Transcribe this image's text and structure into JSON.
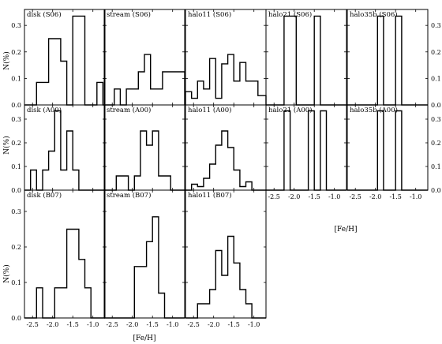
{
  "chart_data": {
    "type": "histogram-grid",
    "ylabel": "N(%)",
    "xlabel": "[Fe/H]",
    "xlim": [
      -2.7,
      -0.7
    ],
    "ylim": [
      0,
      0.36
    ],
    "xticks": [
      -2.5,
      -2.0,
      -1.5,
      -1.0
    ],
    "xtick_labels": [
      "-2.5",
      "-2.0",
      "-1.5",
      "-1.0"
    ],
    "yticks": [
      0.0,
      0.1,
      0.2,
      0.3
    ],
    "ytick_labels": [
      "0.0",
      "0.1",
      "0.2",
      "0.3"
    ],
    "panels": [
      {
        "row": 0,
        "col": 0,
        "title": "disk (S06)",
        "x": [
          -2.7,
          -2.55,
          -2.4,
          -2.25,
          -2.1,
          -1.95,
          -1.8,
          -1.65,
          -1.5,
          -1.35,
          -1.2,
          -1.05,
          -0.9,
          -0.75,
          -0.7
        ],
        "y": [
          0,
          0,
          0.085,
          0.085,
          0.25,
          0.25,
          0.165,
          0,
          0.335,
          0.335,
          0,
          0,
          0.085,
          0
        ]
      },
      {
        "row": 0,
        "col": 1,
        "title": "stream (S06)",
        "x": [
          -2.7,
          -2.6,
          -2.45,
          -2.3,
          -2.15,
          -2.0,
          -1.85,
          -1.7,
          -1.55,
          -1.4,
          -1.25,
          -1.1,
          -0.95,
          -0.8,
          -0.7
        ],
        "y": [
          0,
          0,
          0.06,
          0,
          0.06,
          0.06,
          0.125,
          0.19,
          0.06,
          0.06,
          0.125,
          0.125,
          0.125,
          0.125
        ]
      },
      {
        "row": 0,
        "col": 2,
        "title": "halo11 (S06)",
        "x": [
          -2.7,
          -2.55,
          -2.4,
          -2.25,
          -2.1,
          -1.95,
          -1.8,
          -1.65,
          -1.5,
          -1.35,
          -1.2,
          -1.05,
          -0.9,
          -0.75,
          -0.7
        ],
        "y": [
          0.05,
          0.025,
          0.09,
          0.06,
          0.175,
          0.025,
          0.155,
          0.19,
          0.09,
          0.16,
          0.09,
          0.09,
          0.035,
          0.035
        ]
      },
      {
        "row": 0,
        "col": 3,
        "title": "halo21 (S06)",
        "x": [
          -2.7,
          -2.55,
          -2.4,
          -2.25,
          -2.1,
          -1.95,
          -1.8,
          -1.65,
          -1.5,
          -1.35,
          -1.2,
          -1.05,
          -0.9,
          -0.75,
          -0.7
        ],
        "y": [
          0,
          0,
          0,
          0.335,
          0.335,
          0,
          0,
          0,
          0.335,
          0,
          0,
          0,
          0,
          0
        ]
      },
      {
        "row": 0,
        "col": 4,
        "title": "halo35b (S06)",
        "x": [
          -2.7,
          -2.55,
          -2.4,
          -2.25,
          -2.1,
          -1.95,
          -1.8,
          -1.65,
          -1.5,
          -1.35,
          -1.2,
          -1.05,
          -0.9,
          -0.75,
          -0.7
        ],
        "y": [
          0,
          0,
          0,
          0,
          0,
          0.335,
          0,
          0,
          0.335,
          0,
          0,
          0,
          0,
          0
        ]
      },
      {
        "row": 1,
        "col": 0,
        "title": "disk (A00)",
        "x": [
          -2.7,
          -2.55,
          -2.4,
          -2.25,
          -2.1,
          -1.95,
          -1.8,
          -1.65,
          -1.5,
          -1.35,
          -1.2,
          -1.05,
          -0.9,
          -0.75,
          -0.7
        ],
        "y": [
          0,
          0.085,
          0,
          0.085,
          0.165,
          0.335,
          0.085,
          0.25,
          0.085,
          0,
          0,
          0,
          0,
          0
        ]
      },
      {
        "row": 1,
        "col": 1,
        "title": "stream (A00)",
        "x": [
          -2.7,
          -2.55,
          -2.4,
          -2.25,
          -2.1,
          -1.95,
          -1.8,
          -1.65,
          -1.5,
          -1.35,
          -1.2,
          -1.05,
          -0.9,
          -0.75,
          -0.7
        ],
        "y": [
          0,
          0,
          0.06,
          0.06,
          0,
          0.06,
          0.25,
          0.19,
          0.25,
          0.06,
          0.06,
          0,
          0,
          0
        ]
      },
      {
        "row": 1,
        "col": 2,
        "title": "halo11 (A00)",
        "x": [
          -2.7,
          -2.55,
          -2.4,
          -2.25,
          -2.1,
          -1.95,
          -1.8,
          -1.65,
          -1.5,
          -1.35,
          -1.2,
          -1.05,
          -0.9,
          -0.75,
          -0.7
        ],
        "y": [
          0,
          0.025,
          0.015,
          0.05,
          0.11,
          0.19,
          0.25,
          0.18,
          0.085,
          0.015,
          0.035,
          0,
          0,
          0
        ]
      },
      {
        "row": 1,
        "col": 3,
        "title": "halo21 (A00)",
        "x": [
          -2.7,
          -2.55,
          -2.4,
          -2.25,
          -2.1,
          -1.95,
          -1.8,
          -1.65,
          -1.5,
          -1.35,
          -1.2,
          -1.05,
          -0.9,
          -0.75,
          -0.7
        ],
        "y": [
          0,
          0,
          0,
          0.335,
          0,
          0,
          0,
          0.335,
          0,
          0.335,
          0,
          0,
          0,
          0
        ]
      },
      {
        "row": 1,
        "col": 4,
        "title": "halo35b (A00)",
        "x": [
          -2.7,
          -2.55,
          -2.4,
          -2.25,
          -2.1,
          -1.95,
          -1.8,
          -1.65,
          -1.5,
          -1.35,
          -1.2,
          -1.05,
          -0.9,
          -0.75,
          -0.7
        ],
        "y": [
          0,
          0,
          0,
          0,
          0,
          0.335,
          0,
          0,
          0.335,
          0,
          0,
          0,
          0,
          0
        ]
      },
      {
        "row": 2,
        "col": 0,
        "title": "disk (B07)",
        "x": [
          -2.7,
          -2.55,
          -2.4,
          -2.25,
          -2.1,
          -1.95,
          -1.8,
          -1.65,
          -1.5,
          -1.35,
          -1.2,
          -1.05,
          -0.9,
          -0.75,
          -0.7
        ],
        "y": [
          0,
          0,
          0.085,
          0,
          0,
          0.085,
          0.085,
          0.25,
          0.25,
          0.165,
          0.085,
          0,
          0,
          0
        ]
      },
      {
        "row": 2,
        "col": 1,
        "title": "stream (B07)",
        "x": [
          -2.7,
          -2.55,
          -2.4,
          -2.25,
          -2.1,
          -1.95,
          -1.8,
          -1.65,
          -1.5,
          -1.35,
          -1.2,
          -1.05,
          -0.9,
          -0.75,
          -0.7
        ],
        "y": [
          0,
          0,
          0,
          0,
          0,
          0.145,
          0.145,
          0.215,
          0.285,
          0.07,
          0,
          0,
          0,
          0
        ]
      },
      {
        "row": 2,
        "col": 2,
        "title": "halo11 (B07)",
        "x": [
          -2.7,
          -2.55,
          -2.4,
          -2.25,
          -2.1,
          -1.95,
          -1.8,
          -1.65,
          -1.5,
          -1.35,
          -1.2,
          -1.05,
          -0.9,
          -0.75,
          -0.7
        ],
        "y": [
          0,
          0,
          0.04,
          0.04,
          0.08,
          0.19,
          0.12,
          0.23,
          0.155,
          0.08,
          0.04,
          0,
          0,
          0
        ]
      }
    ]
  }
}
